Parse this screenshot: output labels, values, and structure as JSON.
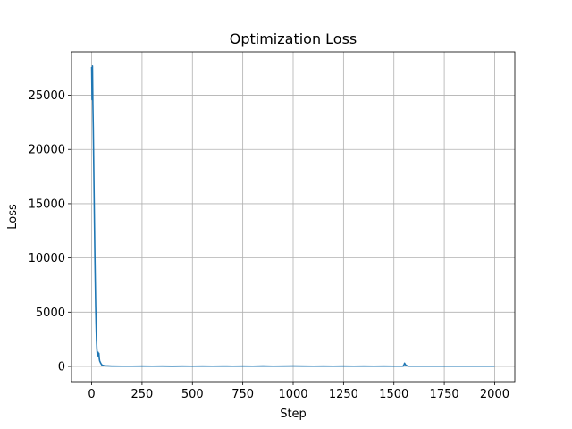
{
  "chart_data": {
    "type": "line",
    "title": "Optimization Loss",
    "xlabel": "Step",
    "ylabel": "Loss",
    "xlim": [
      -100,
      2100
    ],
    "ylim": [
      -1400,
      29000
    ],
    "xticks": [
      0,
      250,
      500,
      750,
      1000,
      1250,
      1500,
      1750,
      2000
    ],
    "yticks": [
      0,
      5000,
      10000,
      15000,
      20000,
      25000
    ],
    "grid": true,
    "colors": {
      "line": "#1f77b4"
    },
    "series": [
      {
        "x": [
          0,
          2,
          4,
          6,
          8,
          10,
          12,
          14,
          16,
          18,
          20,
          22,
          24,
          26,
          28,
          30,
          32,
          34,
          36,
          38,
          40,
          45,
          50,
          55,
          60,
          70,
          80,
          90,
          100,
          150,
          200,
          250,
          300,
          350,
          400,
          450,
          500,
          550,
          600,
          650,
          700,
          750,
          800,
          850,
          900,
          950,
          1000,
          1050,
          1100,
          1150,
          1200,
          1250,
          1300,
          1350,
          1400,
          1450,
          1500,
          1545,
          1550,
          1553,
          1556,
          1560,
          1570,
          1600,
          1650,
          1700,
          1750,
          1800,
          1850,
          1900,
          1950,
          2000
        ],
        "y": [
          27600,
          24600,
          27700,
          24200,
          22000,
          19000,
          16000,
          13000,
          10200,
          7800,
          5500,
          3800,
          2400,
          1600,
          1100,
          1000,
          1300,
          900,
          1200,
          700,
          500,
          300,
          150,
          100,
          80,
          60,
          50,
          40,
          30,
          20,
          20,
          30,
          20,
          25,
          15,
          25,
          20,
          30,
          20,
          25,
          20,
          30,
          20,
          40,
          20,
          30,
          40,
          30,
          20,
          30,
          20,
          30,
          20,
          25,
          20,
          25,
          20,
          20,
          150,
          300,
          200,
          100,
          30,
          20,
          20,
          20,
          20,
          20,
          20,
          20,
          20,
          20
        ]
      }
    ]
  }
}
